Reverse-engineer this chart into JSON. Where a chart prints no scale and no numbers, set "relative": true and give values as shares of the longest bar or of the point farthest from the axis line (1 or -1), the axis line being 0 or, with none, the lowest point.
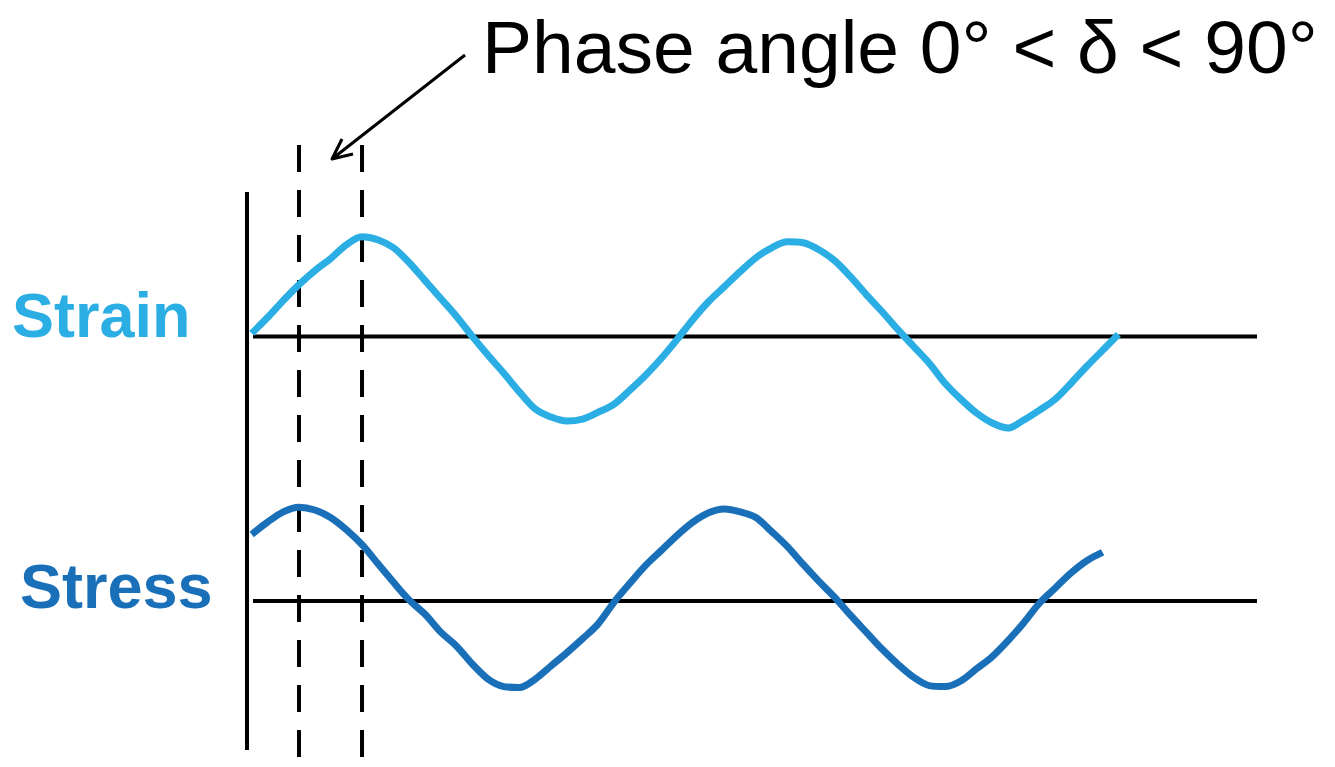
{
  "chart_data": [
    {
      "type": "line",
      "relative": true,
      "categories": [
        null,
        null,
        null,
        null,
        null,
        null,
        null,
        null,
        null,
        null,
        null,
        null,
        null,
        null,
        null,
        null,
        null,
        null,
        null,
        null,
        null,
        null,
        null,
        null,
        null,
        null,
        null,
        null,
        null,
        null,
        null,
        null,
        null,
        null,
        null,
        null,
        null,
        null,
        null,
        null,
        null,
        null,
        null,
        null,
        null,
        null,
        null,
        null,
        null,
        null,
        null,
        null,
        null,
        null,
        null,
        null
      ],
      "series": [
        {
          "name": "Strain",
          "color": "#2baee4",
          "values": [
            0.03,
            0.19,
            0.36,
            0.52,
            0.66,
            0.78,
            0.92,
            1.0,
            0.97,
            0.89,
            0.74,
            0.56,
            0.38,
            0.2,
            0.0,
            -0.19,
            -0.37,
            -0.56,
            -0.73,
            -0.81,
            -0.85,
            -0.83,
            -0.76,
            -0.68,
            -0.54,
            -0.39,
            -0.22,
            -0.03,
            0.17,
            0.35,
            0.5,
            0.65,
            0.79,
            0.89,
            0.95,
            0.94,
            0.87,
            0.76,
            0.6,
            0.42,
            0.25,
            0.07,
            -0.1,
            -0.27,
            -0.47,
            -0.63,
            -0.77,
            -0.87,
            -0.92,
            -0.84,
            -0.74,
            -0.63,
            -0.47,
            -0.3,
            -0.14,
            0.02
          ]
        }
      ],
      "annotations": [
        "Phase angle 0° < δ < 90°"
      ]
    },
    {
      "type": "line",
      "relative": true,
      "categories": [
        null,
        null,
        null,
        null,
        null,
        null,
        null,
        null,
        null,
        null,
        null,
        null,
        null,
        null,
        null,
        null,
        null,
        null,
        null,
        null,
        null,
        null,
        null,
        null,
        null,
        null,
        null,
        null,
        null,
        null,
        null,
        null,
        null,
        null,
        null,
        null,
        null,
        null,
        null,
        null,
        null,
        null,
        null,
        null,
        null,
        null,
        null,
        null,
        null,
        null,
        null,
        null,
        null,
        null,
        null,
        null
      ],
      "series": [
        {
          "name": "Stress",
          "color": "#1a70b8",
          "values": [
            0.71,
            0.84,
            0.95,
            1.0,
            0.97,
            0.89,
            0.76,
            0.6,
            0.4,
            0.2,
            0.01,
            -0.14,
            -0.33,
            -0.48,
            -0.67,
            -0.83,
            -0.91,
            -0.92,
            -0.83,
            -0.69,
            -0.55,
            -0.4,
            -0.24,
            -0.01,
            0.19,
            0.38,
            0.54,
            0.7,
            0.84,
            0.94,
            0.98,
            0.95,
            0.89,
            0.74,
            0.58,
            0.39,
            0.21,
            0.04,
            -0.15,
            -0.33,
            -0.51,
            -0.67,
            -0.81,
            -0.9,
            -0.91,
            -0.85,
            -0.72,
            -0.59,
            -0.42,
            -0.23,
            -0.02,
            0.14,
            0.3,
            0.43,
            0.52,
            null
          ]
        }
      ]
    }
  ]
}
